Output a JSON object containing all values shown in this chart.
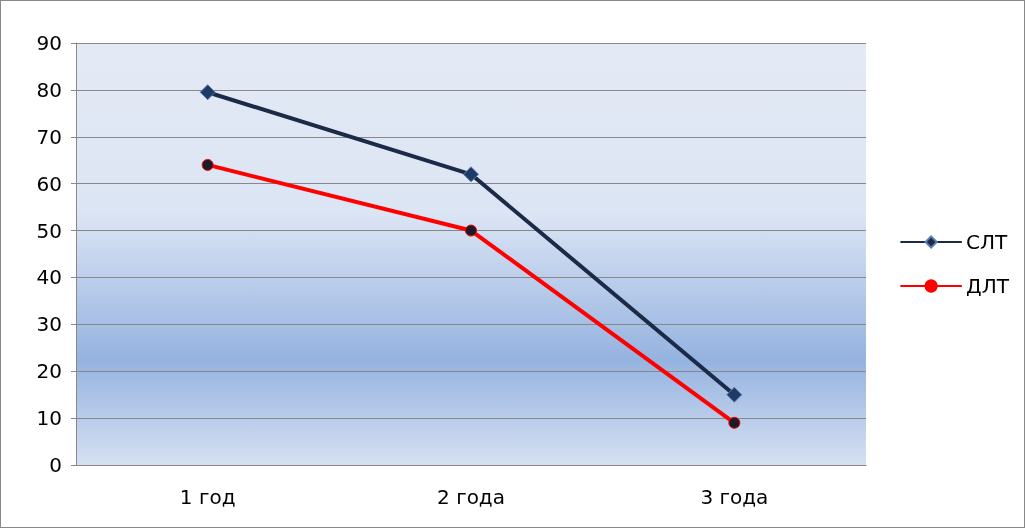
{
  "chart_data": {
    "type": "line",
    "categories": [
      "1 год",
      "2 года",
      "3 года"
    ],
    "series": [
      {
        "name": "СЛТ",
        "color": "#1b2a47",
        "marker": "diamond",
        "values": [
          79.5,
          62,
          15
        ]
      },
      {
        "name": "ДЛТ",
        "color": "#ff0000",
        "marker": "circle",
        "values": [
          64,
          50,
          9
        ]
      }
    ],
    "ylim": [
      0,
      90
    ],
    "yticks": [
      0,
      10,
      20,
      30,
      40,
      50,
      60,
      70,
      80,
      90
    ],
    "grid": "y",
    "legend": "right",
    "line_style": "solid"
  }
}
